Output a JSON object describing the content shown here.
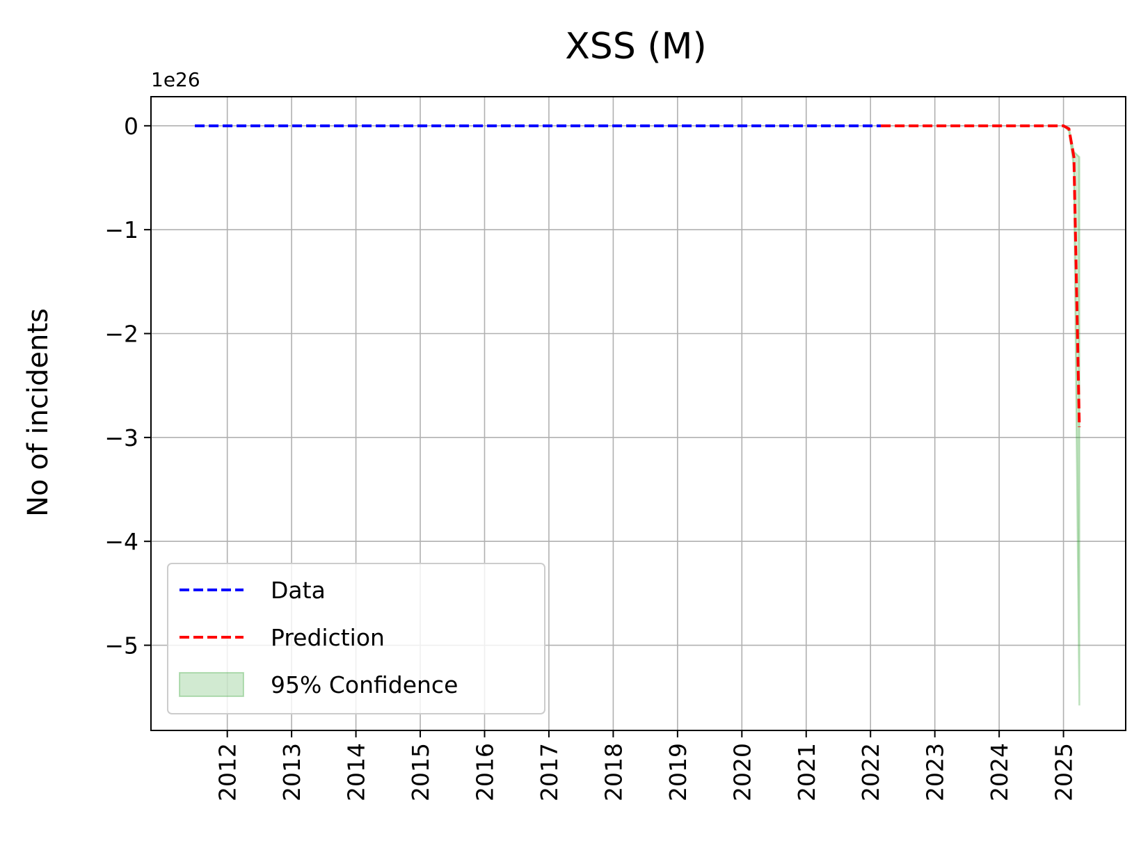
{
  "chart_data": {
    "type": "line",
    "title": "XSS (M)",
    "xlabel": "",
    "ylabel": "No of incidents",
    "y_offset_label": "1e26",
    "y_scale_factor": 1e+26,
    "xlim": [
      "2010-10-25",
      "2025-12-20"
    ],
    "ylim": [
      -5.82,
      0.28
    ],
    "x_ticks": [
      "2012",
      "2013",
      "2014",
      "2015",
      "2016",
      "2017",
      "2018",
      "2019",
      "2020",
      "2021",
      "2022",
      "2023",
      "2024",
      "2025"
    ],
    "y_ticks": [
      0,
      -1,
      -2,
      -3,
      -4,
      -5
    ],
    "y_tick_labels": [
      "0",
      "−1",
      "−2",
      "−3",
      "−4",
      "−5"
    ],
    "grid": true,
    "legend_position": "lower-left",
    "series": [
      {
        "name": "Data",
        "style": "dashed",
        "color": "#0000ff",
        "points": [
          {
            "x": "2011-07-01",
            "y": 0
          },
          {
            "x": "2014-01-01",
            "y": 0
          },
          {
            "x": "2017-01-01",
            "y": 0
          },
          {
            "x": "2020-01-01",
            "y": 0
          },
          {
            "x": "2022-03-01",
            "y": 0
          }
        ]
      },
      {
        "name": "Prediction",
        "style": "dashed",
        "color": "#ff0000",
        "points": [
          {
            "x": "2022-03-01",
            "y": 0
          },
          {
            "x": "2024-06-01",
            "y": 0
          },
          {
            "x": "2025-01-01",
            "y": 0
          },
          {
            "x": "2025-02-01",
            "y": -0.03
          },
          {
            "x": "2025-03-01",
            "y": -0.3
          },
          {
            "x": "2025-04-01",
            "y": -2.9
          }
        ]
      },
      {
        "name": "95% Confidence",
        "style": "band",
        "color": "#2ca02c",
        "upper": [
          {
            "x": "2025-01-01",
            "y": 0
          },
          {
            "x": "2025-02-01",
            "y": -0.02
          },
          {
            "x": "2025-03-01",
            "y": -0.25
          },
          {
            "x": "2025-04-01",
            "y": -0.3
          }
        ],
        "lower": [
          {
            "x": "2025-01-01",
            "y": 0
          },
          {
            "x": "2025-02-01",
            "y": -0.05
          },
          {
            "x": "2025-03-01",
            "y": -0.4
          },
          {
            "x": "2025-04-01",
            "y": -5.58
          }
        ]
      }
    ]
  }
}
